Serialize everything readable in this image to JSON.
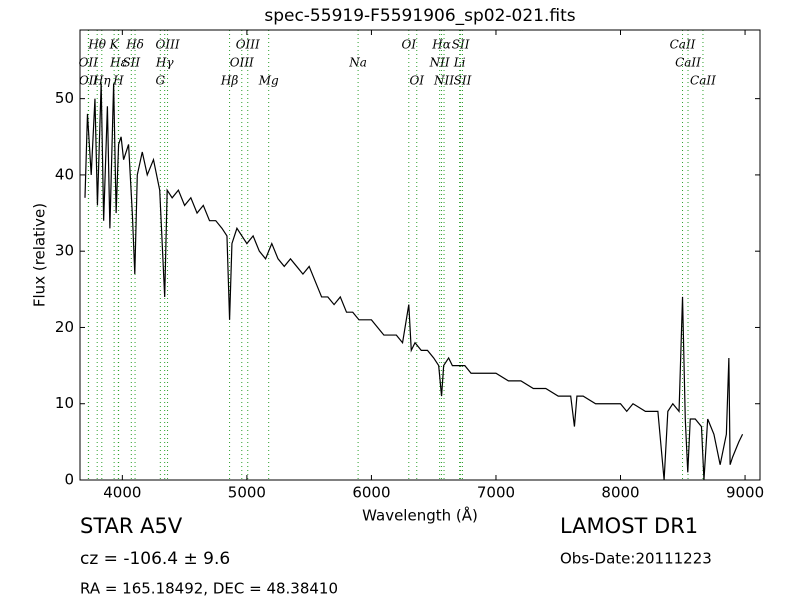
{
  "chart_data": {
    "type": "line",
    "title": "spec-55919-F5591906_sp02-021.fits",
    "x_label": "Wavelength (Å)",
    "y_label": "Flux (relative)",
    "xlim": [
      3660,
      9120
    ],
    "ylim": [
      0,
      59
    ],
    "xticks": [
      4000,
      5000,
      6000,
      7000,
      8000,
      9000
    ],
    "yticks": [
      0,
      10,
      20,
      30,
      40,
      50
    ],
    "color": "#000000",
    "line_color": "#2ca02c",
    "x": [
      3700,
      3720,
      3750,
      3780,
      3800,
      3830,
      3850,
      3880,
      3900,
      3930,
      3950,
      3970,
      3990,
      4010,
      4050,
      4080,
      4100,
      4120,
      4160,
      4200,
      4250,
      4300,
      4340,
      4360,
      4400,
      4450,
      4500,
      4550,
      4600,
      4650,
      4700,
      4750,
      4800,
      4840,
      4861,
      4880,
      4920,
      4960,
      5000,
      5050,
      5100,
      5150,
      5200,
      5250,
      5300,
      5350,
      5400,
      5450,
      5500,
      5550,
      5600,
      5650,
      5700,
      5750,
      5800,
      5850,
      5900,
      5950,
      6000,
      6050,
      6100,
      6150,
      6200,
      6250,
      6300,
      6320,
      6350,
      6400,
      6450,
      6500,
      6540,
      6563,
      6580,
      6620,
      6650,
      6700,
      6750,
      6800,
      6900,
      7000,
      7100,
      7200,
      7300,
      7400,
      7500,
      7600,
      7630,
      7650,
      7700,
      7800,
      7900,
      8000,
      8050,
      8100,
      8200,
      8300,
      8350,
      8380,
      8420,
      8470,
      8498,
      8520,
      8540,
      8560,
      8600,
      8650,
      8670,
      8700,
      8750,
      8800,
      8850,
      8870,
      8880,
      8900,
      8950,
      8980
    ],
    "values": [
      37,
      48,
      40,
      50,
      36,
      52,
      34,
      49,
      33,
      52,
      35,
      44,
      45,
      42,
      44,
      35,
      27,
      40,
      43,
      40,
      42,
      38,
      24,
      38,
      37,
      38,
      36,
      37,
      35,
      36,
      34,
      34,
      33,
      32,
      21,
      31,
      33,
      32,
      31,
      32,
      30,
      29,
      31,
      29,
      28,
      29,
      28,
      27,
      28,
      26,
      24,
      24,
      23,
      24,
      22,
      22,
      21,
      21,
      21,
      20,
      19,
      19,
      19,
      18,
      23,
      17,
      18,
      17,
      17,
      16,
      15,
      11,
      15,
      16,
      15,
      15,
      15,
      14,
      14,
      14,
      13,
      13,
      12,
      12,
      11,
      11,
      7,
      11,
      11,
      10,
      10,
      10,
      9,
      10,
      9,
      9,
      0,
      9,
      10,
      9,
      24,
      8,
      1,
      8,
      8,
      7,
      0,
      8,
      6,
      2,
      6,
      16,
      2,
      3,
      5,
      6
    ],
    "spectral_lines": [
      {
        "label": "Hθ",
        "x": 3798
      },
      {
        "label": "K",
        "x": 3934
      },
      {
        "label": "Hδ",
        "x": 4102
      },
      {
        "label": "OIII",
        "x": 4363
      },
      {
        "label": "OIII",
        "x": 5007
      },
      {
        "label": "OI",
        "x": 6300
      },
      {
        "label": "Hα",
        "x": 6563
      },
      {
        "label": "SII",
        "x": 6716
      },
      {
        "label": "CaII",
        "x": 8498
      },
      {
        "label": "OII",
        "x": 3727
      },
      {
        "label": "Hε",
        "x": 3970
      },
      {
        "label": "SII",
        "x": 4072
      },
      {
        "label": "Hγ",
        "x": 4340
      },
      {
        "label": "OIII",
        "x": 4959
      },
      {
        "label": "Na",
        "x": 5893
      },
      {
        "label": "NII",
        "x": 6548
      },
      {
        "label": "Li",
        "x": 6708
      },
      {
        "label": "CaII",
        "x": 8542
      },
      {
        "label": "OII",
        "x": 3729
      },
      {
        "label": "Hη",
        "x": 3835
      },
      {
        "label": "H",
        "x": 3968
      },
      {
        "label": "G",
        "x": 4305
      },
      {
        "label": "Hβ",
        "x": 4861
      },
      {
        "label": "Mg",
        "x": 5175
      },
      {
        "label": "OI",
        "x": 6364
      },
      {
        "label": "NII",
        "x": 6583
      },
      {
        "label": "SII",
        "x": 6731
      },
      {
        "label": "CaII",
        "x": 8662
      }
    ]
  },
  "info": {
    "object": "STAR   A5V",
    "redshift": "cz = -106.4 ± 9.6",
    "coords": "RA = 165.18492, DEC = 48.38410",
    "survey": "LAMOST DR1",
    "date": "Obs-Date:20111223"
  }
}
